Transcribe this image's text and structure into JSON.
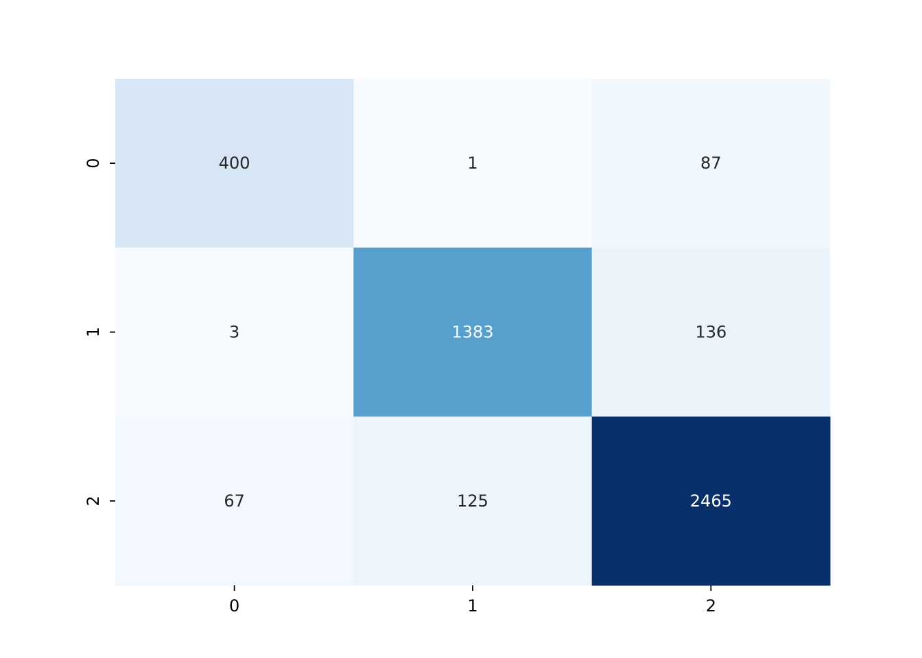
{
  "chart_data": {
    "type": "heatmap",
    "title": "",
    "xlabel": "",
    "ylabel": "",
    "x_categories": [
      "0",
      "1",
      "2"
    ],
    "y_categories": [
      "0",
      "1",
      "2"
    ],
    "values": [
      [
        400,
        1,
        87
      ],
      [
        3,
        1383,
        136
      ],
      [
        67,
        125,
        2465
      ]
    ],
    "colormap": "Blues",
    "color_range": [
      1,
      2465
    ],
    "colorbar": false,
    "grid": false,
    "legend": "none"
  },
  "colors": {
    "low": "#f7fbff",
    "high": "#08306b",
    "text_dark": "#262626",
    "text_light": "#ffffff"
  }
}
